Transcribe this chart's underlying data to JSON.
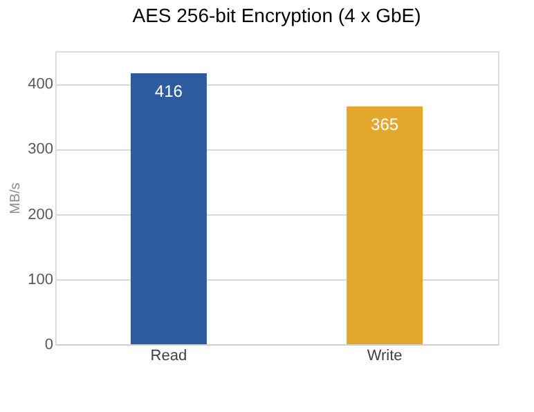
{
  "chart_data": {
    "type": "bar",
    "title": "AES 256-bit Encryption (4 x GbE)",
    "ylabel": "MB/s",
    "categories": [
      "Read",
      "Write"
    ],
    "values": [
      416,
      365
    ],
    "colors": [
      "#2e5aa0",
      "#e3a82b"
    ],
    "ylim": [
      0,
      450
    ],
    "yticks": [
      0,
      100,
      200,
      300,
      400
    ],
    "grid": "y",
    "data_labels": true
  }
}
